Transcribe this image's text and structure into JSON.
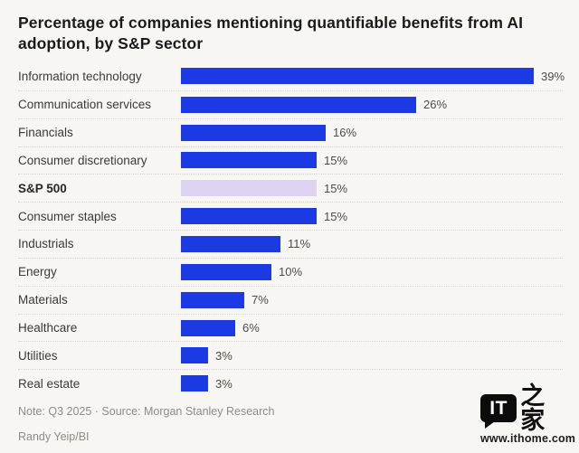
{
  "header": {
    "title_line1": "Percentage of companies mentioning quantifiable benefits from AI",
    "title_line2": "adoption, by S&P sector"
  },
  "chart_data": {
    "type": "bar",
    "orientation": "horizontal",
    "title": "Percentage of companies mentioning quantifiable benefits from AI adoption, by S&P sector",
    "categories": [
      "Information technology",
      "Communication services",
      "Financials",
      "Consumer discretionary",
      "S&P 500",
      "Consumer staples",
      "Industrials",
      "Energy",
      "Materials",
      "Healthcare",
      "Utilities",
      "Real estate"
    ],
    "values": [
      39,
      26,
      16,
      15,
      15,
      15,
      11,
      10,
      7,
      6,
      3,
      3
    ],
    "value_labels": [
      "39%",
      "26%",
      "16%",
      "15%",
      "15%",
      "15%",
      "11%",
      "10%",
      "7%",
      "6%",
      "3%",
      "3%"
    ],
    "unit": "%",
    "xlim": [
      0,
      40
    ],
    "grid": false,
    "legend": false,
    "highlight_category": "S&P 500",
    "bar_color": "#1b3ae4",
    "highlight_bar_color": "#ded3f1",
    "separator_style": "dotted"
  },
  "footer": {
    "note": "Note: Q3 2025 · Source: Morgan Stanley Research",
    "credit": "Randy Yeip/BI"
  },
  "watermark": {
    "logo_text": "IT",
    "logo_cjk": "之家",
    "url": "www.ithome.com"
  }
}
